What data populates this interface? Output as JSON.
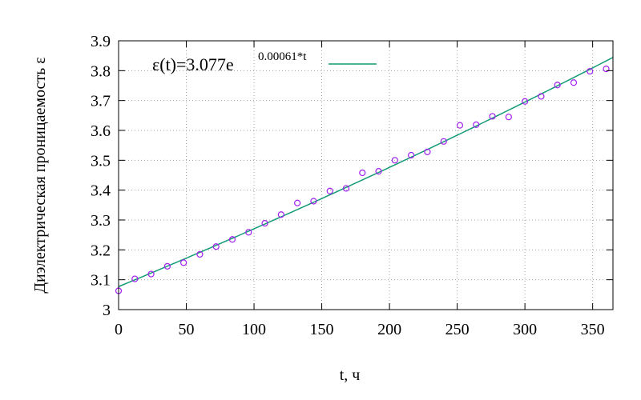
{
  "chart_data": {
    "type": "scatter",
    "title": "",
    "xlabel": "t, ч",
    "ylabel": "Диэлектрическая проницаемость ε",
    "xlim": [
      0,
      365
    ],
    "ylim": [
      3.0,
      3.9
    ],
    "xticks": [
      0,
      50,
      100,
      150,
      200,
      250,
      300,
      350
    ],
    "yticks": [
      3,
      3.1,
      3.2,
      3.3,
      3.4,
      3.5,
      3.6,
      3.7,
      3.8,
      3.9
    ],
    "xtick_labels": [
      "0",
      "50",
      "100",
      "150",
      "200",
      "250",
      "300",
      "350"
    ],
    "ytick_labels": [
      "3",
      "3.1",
      "3.2",
      "3.3",
      "3.4",
      "3.5",
      "3.6",
      "3.7",
      "3.8",
      "3.9"
    ],
    "grid": true,
    "legend": {
      "placement": "top-left",
      "text_main": "ε(t)=3.077e",
      "text_exponent": "0.00061*t"
    },
    "fit": {
      "a": 3.077,
      "b": 0.00061,
      "color": "#139b77"
    },
    "points_color": "#a020f0",
    "series": [
      {
        "x": [
          0,
          12,
          24,
          36,
          48,
          60,
          72,
          84,
          96,
          108,
          120,
          132,
          144,
          156,
          168,
          180,
          192,
          204,
          216,
          228,
          240,
          252,
          264,
          276,
          288,
          300,
          312,
          324,
          336,
          348,
          360
        ],
        "y": [
          3.063,
          3.103,
          3.119,
          3.145,
          3.157,
          3.185,
          3.211,
          3.235,
          3.259,
          3.289,
          3.318,
          3.357,
          3.363,
          3.397,
          3.406,
          3.458,
          3.463,
          3.5,
          3.517,
          3.528,
          3.563,
          3.617,
          3.619,
          3.647,
          3.645,
          3.697,
          3.714,
          3.752,
          3.76,
          3.798,
          3.806
        ]
      }
    ]
  }
}
